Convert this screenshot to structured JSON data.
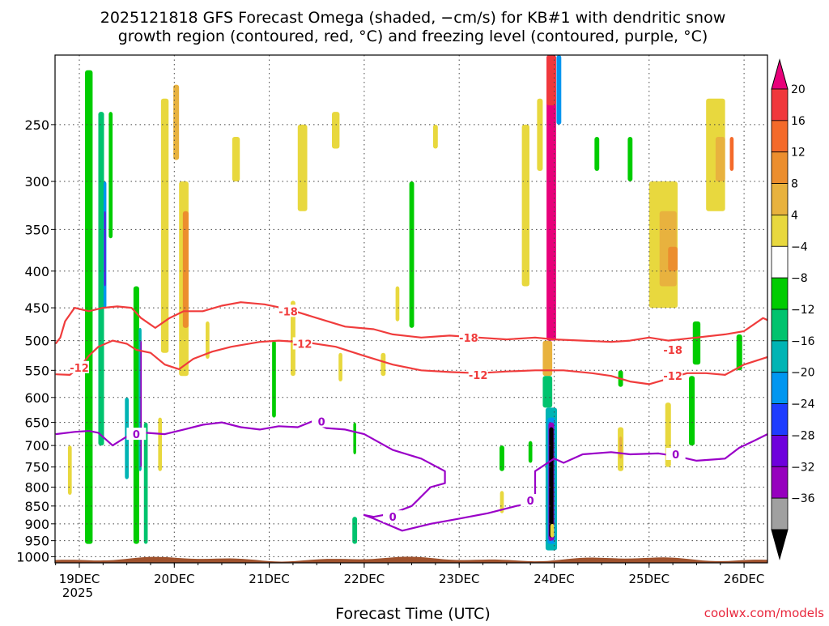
{
  "chart_data": {
    "type": "heatmap",
    "title_line1": "2025121818 GFS Forecast Omega (shaded, −cm/s) for KB#1 with dendritic snow",
    "title_line2": "growth region (contoured, red, °C) and freezing level (contoured, purple, °C)",
    "xlabel": "Forecast Time (UTC)",
    "credit": "coolwx.com/models",
    "x_axis": {
      "range": [
        "2025-12-18T21",
        "2025-12-26T06"
      ],
      "ticks": [
        {
          "label": "19DEC",
          "sublabel": "2025",
          "t": 0
        },
        {
          "label": "20DEC",
          "sublabel": "",
          "t": 1
        },
        {
          "label": "21DEC",
          "sublabel": "",
          "t": 2
        },
        {
          "label": "22DEC",
          "sublabel": "",
          "t": 3
        },
        {
          "label": "23DEC",
          "sublabel": "",
          "t": 4
        },
        {
          "label": "24DEC",
          "sublabel": "",
          "t": 5
        },
        {
          "label": "25DEC",
          "sublabel": "",
          "t": 6
        },
        {
          "label": "26DEC",
          "sublabel": "",
          "t": 7
        }
      ]
    },
    "y_axis": {
      "label": "",
      "scale": "log-pressure",
      "range_hpa": [
        1020,
        200
      ],
      "ticks": [
        250,
        300,
        350,
        400,
        450,
        500,
        550,
        600,
        650,
        700,
        750,
        800,
        850,
        900,
        950,
        1000
      ]
    },
    "colorbar": {
      "labels": [
        "20",
        "16",
        "12",
        "8",
        "4",
        "−4",
        "−8",
        "−12",
        "−16",
        "−20",
        "−24",
        "−28",
        "−32",
        "−36"
      ],
      "colors_top_to_bottom": [
        "#e8007a",
        "#f0383c",
        "#f46a2a",
        "#ec8e2e",
        "#e8b23e",
        "#e8d83e",
        "#ffffff",
        "#00cc00",
        "#00c36e",
        "#00b4b4",
        "#0096f0",
        "#1e3cff",
        "#6e00dc",
        "#9600be",
        "#a0a0a0",
        "#000000"
      ]
    },
    "contours": [
      {
        "label": "-18",
        "color": "#f03c3c",
        "points": [
          [
            -0.25,
            505
          ],
          [
            -0.2,
            495
          ],
          [
            -0.15,
            470
          ],
          [
            -0.05,
            450
          ],
          [
            0.1,
            455
          ],
          [
            0.25,
            450
          ],
          [
            0.4,
            448
          ],
          [
            0.55,
            450
          ],
          [
            0.65,
            465
          ],
          [
            0.8,
            480
          ],
          [
            0.95,
            465
          ],
          [
            1.1,
            455
          ],
          [
            1.3,
            455
          ],
          [
            1.5,
            447
          ],
          [
            1.7,
            442
          ],
          [
            1.95,
            445
          ],
          [
            2.2,
            452
          ],
          [
            2.5,
            465
          ],
          [
            2.8,
            478
          ],
          [
            3.1,
            482
          ],
          [
            3.3,
            490
          ],
          [
            3.6,
            495
          ],
          [
            3.9,
            492
          ],
          [
            4.2,
            495
          ],
          [
            4.5,
            498
          ],
          [
            4.8,
            495
          ],
          [
            5.0,
            498
          ],
          [
            5.3,
            500
          ],
          [
            5.6,
            502
          ],
          [
            5.8,
            500
          ],
          [
            6.0,
            495
          ],
          [
            6.2,
            500
          ],
          [
            6.5,
            495
          ],
          [
            6.8,
            490
          ],
          [
            7.0,
            485
          ],
          [
            7.2,
            465
          ],
          [
            7.3,
            468
          ]
        ]
      },
      {
        "label": "-12",
        "color": "#f03c3c",
        "points": [
          [
            -0.25,
            557
          ],
          [
            -0.1,
            558
          ],
          [
            0.0,
            545
          ],
          [
            0.1,
            525
          ],
          [
            0.2,
            510
          ],
          [
            0.35,
            500
          ],
          [
            0.5,
            505
          ],
          [
            0.6,
            515
          ],
          [
            0.75,
            520
          ],
          [
            0.9,
            540
          ],
          [
            1.05,
            548
          ],
          [
            1.2,
            530
          ],
          [
            1.4,
            518
          ],
          [
            1.6,
            510
          ],
          [
            1.9,
            502
          ],
          [
            2.1,
            500
          ],
          [
            2.4,
            503
          ],
          [
            2.7,
            510
          ],
          [
            3.0,
            525
          ],
          [
            3.3,
            540
          ],
          [
            3.6,
            550
          ],
          [
            3.9,
            553
          ],
          [
            4.2,
            555
          ],
          [
            4.5,
            552
          ],
          [
            4.8,
            550
          ],
          [
            5.1,
            550
          ],
          [
            5.4,
            555
          ],
          [
            5.6,
            560
          ],
          [
            5.8,
            570
          ],
          [
            6.0,
            575
          ],
          [
            6.2,
            565
          ],
          [
            6.4,
            555
          ],
          [
            6.6,
            555
          ],
          [
            6.8,
            558
          ],
          [
            7.0,
            540
          ],
          [
            7.3,
            527
          ]
        ]
      },
      {
        "label": "0",
        "color": "#9a00c8",
        "points": [
          [
            -0.25,
            675
          ],
          [
            -0.05,
            670
          ],
          [
            0.1,
            668
          ],
          [
            0.2,
            672
          ],
          [
            0.35,
            700
          ],
          [
            0.5,
            680
          ],
          [
            0.7,
            672
          ],
          [
            0.9,
            675
          ],
          [
            1.1,
            665
          ],
          [
            1.3,
            655
          ],
          [
            1.5,
            650
          ],
          [
            1.7,
            660
          ],
          [
            1.9,
            665
          ],
          [
            2.1,
            658
          ],
          [
            2.3,
            660
          ],
          [
            2.45,
            648
          ],
          [
            2.6,
            662
          ],
          [
            2.8,
            665
          ],
          [
            3.0,
            675
          ],
          [
            3.3,
            710
          ],
          [
            3.6,
            730
          ],
          [
            3.85,
            760
          ],
          [
            3.85,
            790
          ],
          [
            3.7,
            800
          ],
          [
            3.5,
            850
          ],
          [
            3.3,
            870
          ],
          [
            3.1,
            880
          ],
          [
            3.0,
            875
          ],
          [
            3.1,
            885
          ],
          [
            3.4,
            920
          ],
          [
            3.7,
            900
          ],
          [
            4.0,
            885
          ],
          [
            4.3,
            870
          ],
          [
            4.6,
            850
          ],
          [
            4.8,
            840
          ],
          [
            4.8,
            760
          ],
          [
            5.0,
            730
          ],
          [
            5.1,
            740
          ],
          [
            5.3,
            720
          ],
          [
            5.6,
            715
          ],
          [
            5.8,
            720
          ],
          [
            6.1,
            718
          ],
          [
            6.3,
            725
          ],
          [
            6.5,
            735
          ],
          [
            6.8,
            730
          ],
          [
            6.95,
            705
          ],
          [
            7.1,
            690
          ],
          [
            7.3,
            675
          ]
        ]
      }
    ],
    "contour_labels": [
      {
        "text": "-18",
        "t": 2.2,
        "p": 455
      },
      {
        "text": "-18",
        "t": 4.1,
        "p": 495
      },
      {
        "text": "-18",
        "t": 6.25,
        "p": 515
      },
      {
        "text": "-12",
        "t": 0.0,
        "p": 545
      },
      {
        "text": "-12",
        "t": 2.35,
        "p": 505
      },
      {
        "text": "-12",
        "t": 4.2,
        "p": 558
      },
      {
        "text": "-12",
        "t": 6.25,
        "p": 560
      },
      {
        "text": "0",
        "t": 0.6,
        "p": 675
      },
      {
        "text": "0",
        "t": 2.55,
        "p": 648
      },
      {
        "text": "0",
        "t": 6.28,
        "p": 720
      },
      {
        "text": "0",
        "t": 3.3,
        "p": 880
      },
      {
        "text": "0",
        "t": 4.75,
        "p": 835
      }
    ],
    "shaded_cells": [
      {
        "t": 4.97,
        "p1": 200,
        "p2": 500,
        "w": 0.1,
        "color": "#e8007a"
      },
      {
        "t": 4.97,
        "p1": 200,
        "p2": 235,
        "w": 0.1,
        "color": "#f0383c"
      },
      {
        "t": 5.05,
        "p1": 200,
        "p2": 250,
        "w": 0.05,
        "color": "#0096f0"
      },
      {
        "t": 4.93,
        "p1": 500,
        "p2": 560,
        "w": 0.1,
        "color": "#e8b23e"
      },
      {
        "t": 4.93,
        "p1": 560,
        "p2": 620,
        "w": 0.1,
        "color": "#00c36e"
      },
      {
        "t": 4.97,
        "p1": 620,
        "p2": 980,
        "w": 0.12,
        "color": "#00b4b4"
      },
      {
        "t": 4.97,
        "p1": 640,
        "p2": 960,
        "w": 0.08,
        "color": "#0096f0"
      },
      {
        "t": 4.97,
        "p1": 650,
        "p2": 950,
        "w": 0.06,
        "color": "#9600be"
      },
      {
        "t": 4.97,
        "p1": 660,
        "p2": 940,
        "w": 0.045,
        "color": "#000000"
      },
      {
        "t": 0.1,
        "p1": 210,
        "p2": 960,
        "w": 0.08,
        "color": "#00cc00"
      },
      {
        "t": 0.23,
        "p1": 240,
        "p2": 700,
        "w": 0.06,
        "color": "#00c36e"
      },
      {
        "t": 0.27,
        "p1": 300,
        "p2": 450,
        "w": 0.03,
        "color": "#0096f0"
      },
      {
        "t": 0.27,
        "p1": 330,
        "p2": 420,
        "w": 0.015,
        "color": "#6e00dc"
      },
      {
        "t": 0.6,
        "p1": 420,
        "p2": 960,
        "w": 0.06,
        "color": "#00cc00"
      },
      {
        "t": 0.64,
        "p1": 480,
        "p2": 760,
        "w": 0.03,
        "color": "#00b4b4"
      },
      {
        "t": 0.65,
        "p1": 500,
        "p2": 750,
        "w": 0.015,
        "color": "#9600be"
      },
      {
        "t": 0.5,
        "p1": 600,
        "p2": 780,
        "w": 0.04,
        "color": "#00b4b4"
      },
      {
        "t": 0.7,
        "p1": 650,
        "p2": 960,
        "w": 0.04,
        "color": "#00c36e"
      },
      {
        "t": 0.9,
        "p1": 230,
        "p2": 520,
        "w": 0.08,
        "color": "#e8d83e"
      },
      {
        "t": 1.1,
        "p1": 300,
        "p2": 560,
        "w": 0.1,
        "color": "#e8d83e"
      },
      {
        "t": 1.12,
        "p1": 330,
        "p2": 480,
        "w": 0.06,
        "color": "#ec8e2e"
      },
      {
        "t": 1.02,
        "p1": 220,
        "p2": 280,
        "w": 0.06,
        "color": "#e8b23e"
      },
      {
        "t": 2.9,
        "p1": 880,
        "p2": 960,
        "w": 0.05,
        "color": "#00c36e"
      },
      {
        "t": 2.9,
        "p1": 650,
        "p2": 720,
        "w": 0.03,
        "color": "#00cc00"
      },
      {
        "t": 1.65,
        "p1": 260,
        "p2": 300,
        "w": 0.08,
        "color": "#e8d83e"
      },
      {
        "t": 2.35,
        "p1": 250,
        "p2": 330,
        "w": 0.1,
        "color": "#e8d83e"
      },
      {
        "t": 2.7,
        "p1": 240,
        "p2": 270,
        "w": 0.08,
        "color": "#e8d83e"
      },
      {
        "t": 3.5,
        "p1": 300,
        "p2": 480,
        "w": 0.05,
        "color": "#00cc00"
      },
      {
        "t": 3.75,
        "p1": 250,
        "p2": 270,
        "w": 0.05,
        "color": "#e8d83e"
      },
      {
        "t": 4.7,
        "p1": 250,
        "p2": 420,
        "w": 0.08,
        "color": "#e8d83e"
      },
      {
        "t": 4.85,
        "p1": 230,
        "p2": 290,
        "w": 0.06,
        "color": "#e8d83e"
      },
      {
        "t": 5.45,
        "p1": 260,
        "p2": 290,
        "w": 0.05,
        "color": "#00cc00"
      },
      {
        "t": 5.8,
        "p1": 260,
        "p2": 300,
        "w": 0.05,
        "color": "#00cc00"
      },
      {
        "t": 6.15,
        "p1": 300,
        "p2": 450,
        "w": 0.3,
        "color": "#e8d83e"
      },
      {
        "t": 6.2,
        "p1": 330,
        "p2": 420,
        "w": 0.18,
        "color": "#e8b23e"
      },
      {
        "t": 6.25,
        "p1": 370,
        "p2": 400,
        "w": 0.1,
        "color": "#ec8e2e"
      },
      {
        "t": 6.7,
        "p1": 230,
        "p2": 330,
        "w": 0.2,
        "color": "#e8d83e"
      },
      {
        "t": 6.75,
        "p1": 260,
        "p2": 300,
        "w": 0.1,
        "color": "#e8b23e"
      },
      {
        "t": 6.87,
        "p1": 260,
        "p2": 290,
        "w": 0.04,
        "color": "#f46a2a"
      },
      {
        "t": 6.5,
        "p1": 470,
        "p2": 540,
        "w": 0.08,
        "color": "#00cc00"
      },
      {
        "t": 6.95,
        "p1": 490,
        "p2": 550,
        "w": 0.06,
        "color": "#00cc00"
      },
      {
        "t": 6.45,
        "p1": 560,
        "p2": 700,
        "w": 0.06,
        "color": "#00cc00"
      },
      {
        "t": 5.7,
        "p1": 550,
        "p2": 580,
        "w": 0.05,
        "color": "#00cc00"
      },
      {
        "t": 5.7,
        "p1": 660,
        "p2": 760,
        "w": 0.06,
        "color": "#e8d83e"
      },
      {
        "t": 5.7,
        "p1": 680,
        "p2": 730,
        "w": 0.03,
        "color": "#e8b23e"
      },
      {
        "t": 6.2,
        "p1": 610,
        "p2": 750,
        "w": 0.06,
        "color": "#e8d83e"
      },
      {
        "t": 4.45,
        "p1": 700,
        "p2": 760,
        "w": 0.05,
        "color": "#00cc00"
      },
      {
        "t": 4.45,
        "p1": 810,
        "p2": 870,
        "w": 0.04,
        "color": "#e8d83e"
      },
      {
        "t": 4.75,
        "p1": 690,
        "p2": 740,
        "w": 0.04,
        "color": "#00cc00"
      },
      {
        "t": 4.98,
        "p1": 900,
        "p2": 940,
        "w": 0.04,
        "color": "#e8d83e"
      },
      {
        "t": 2.25,
        "p1": 440,
        "p2": 560,
        "w": 0.05,
        "color": "#e8d83e"
      },
      {
        "t": 3.2,
        "p1": 520,
        "p2": 560,
        "w": 0.05,
        "color": "#e8d83e"
      },
      {
        "t": 2.75,
        "p1": 520,
        "p2": 570,
        "w": 0.04,
        "color": "#e8d83e"
      },
      {
        "t": -0.1,
        "p1": 700,
        "p2": 820,
        "w": 0.04,
        "color": "#e8d83e"
      },
      {
        "t": 1.35,
        "p1": 470,
        "p2": 530,
        "w": 0.04,
        "color": "#e8d83e"
      },
      {
        "t": 0.85,
        "p1": 640,
        "p2": 760,
        "w": 0.04,
        "color": "#e8d83e"
      },
      {
        "t": 0.33,
        "p1": 240,
        "p2": 360,
        "w": 0.04,
        "color": "#00cc00"
      },
      {
        "t": 2.05,
        "p1": 500,
        "p2": 640,
        "w": 0.04,
        "color": "#00cc00"
      },
      {
        "t": 3.35,
        "p1": 420,
        "p2": 470,
        "w": 0.04,
        "color": "#e8d83e"
      }
    ],
    "ground_color": "#a0522d"
  }
}
